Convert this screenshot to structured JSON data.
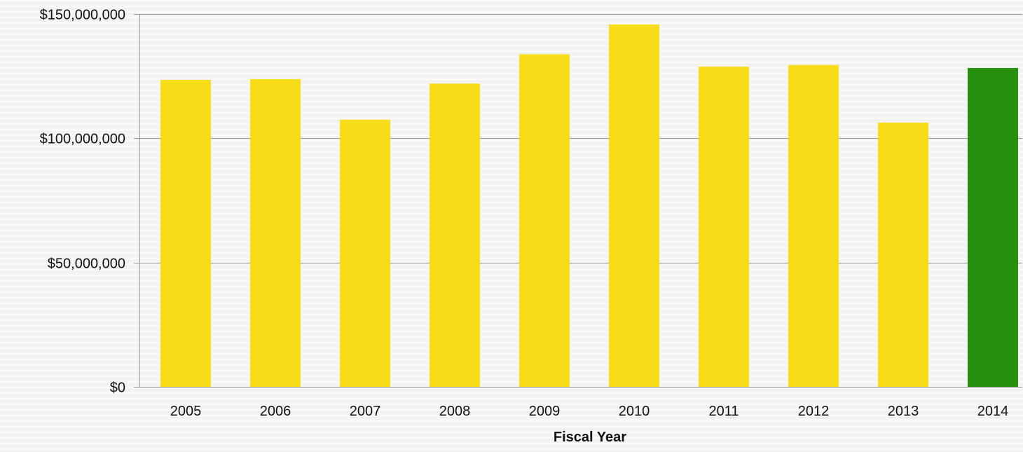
{
  "chart_data": {
    "type": "bar",
    "xlabel": "Fiscal Year",
    "ylabel": "",
    "title": "",
    "categories": [
      "2005",
      "2006",
      "2007",
      "2008",
      "2009",
      "2010",
      "2011",
      "2012",
      "2013",
      "2014"
    ],
    "values": [
      123500000,
      123800000,
      107500000,
      122000000,
      133800000,
      145800000,
      128800000,
      129500000,
      106300000,
      128300000
    ],
    "ylim": [
      0,
      150000000
    ],
    "yticks": [
      0,
      50000000,
      100000000,
      150000000
    ],
    "ytick_labels": [
      "$0",
      "$50,000,000",
      "$100,000,000",
      "$150,000,000"
    ],
    "grid": true,
    "colors": {
      "bar": "#f7dc19",
      "highlight_bar": "#24900d",
      "grid": "#9a9a9a",
      "axis": "#9a9a9a",
      "text": "#111111"
    },
    "highlight_category": "2014"
  }
}
